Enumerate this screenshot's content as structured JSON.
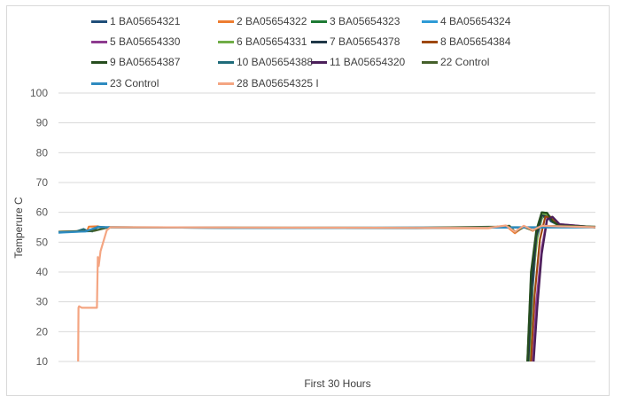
{
  "chart_data": {
    "type": "line",
    "title": "",
    "xlabel": "First 30 Hours",
    "ylabel": "Temperure C",
    "ylim": [
      10,
      100
    ],
    "yticks": [
      10,
      20,
      30,
      40,
      50,
      60,
      70,
      80,
      90,
      100
    ],
    "xlim": [
      0,
      30
    ],
    "grid": "horizontal",
    "legend_position": "top",
    "series": [
      {
        "name": "1 BA05654321",
        "color": "#1f4e79",
        "x": [
          26.3,
          26.5,
          26.7,
          27,
          27.3,
          27.5,
          28,
          30
        ],
        "y": [
          10,
          35,
          50,
          58,
          59.5,
          57,
          55.5,
          55
        ]
      },
      {
        "name": "2 BA05654322",
        "color": "#ed7d31",
        "x": [
          0,
          1.6,
          1.7,
          2.2,
          2.3,
          2.8,
          3,
          10,
          20,
          24,
          25,
          25.5,
          26,
          26.5,
          27,
          30
        ],
        "y": [
          53.5,
          53.8,
          55.2,
          55.3,
          55,
          55,
          55,
          54.8,
          54.7,
          54.7,
          55.5,
          53,
          55.2,
          53.8,
          55.5,
          55
        ]
      },
      {
        "name": "3 BA05654323",
        "color": "#1e7b34",
        "x": [
          26.2,
          26.4,
          26.7,
          27,
          27.3,
          27.6,
          28,
          30
        ],
        "y": [
          10,
          38,
          53,
          60,
          59.8,
          57,
          55.5,
          55
        ]
      },
      {
        "name": "4 BA05654324",
        "color": "#2e9bd6",
        "x": [
          0,
          1,
          1.8,
          2.2,
          2.8,
          10,
          20,
          24.5,
          30
        ],
        "y": [
          53.2,
          53.5,
          53.7,
          55,
          55,
          54.8,
          54.7,
          55,
          55
        ]
      },
      {
        "name": "5 BA05654330",
        "color": "#8e3b8f",
        "x": [
          26.5,
          26.7,
          27,
          27.3,
          27.6,
          28,
          30
        ],
        "y": [
          10,
          30,
          48,
          58,
          58.5,
          56,
          55
        ]
      },
      {
        "name": "6 BA05654331",
        "color": "#70ad47",
        "x": [
          26.3,
          26.5,
          26.8,
          27.1,
          27.4,
          27.7,
          28,
          30
        ],
        "y": [
          10,
          38,
          54,
          59.5,
          59,
          56.5,
          55.5,
          55
        ]
      },
      {
        "name": "7 BA05654378",
        "color": "#203848",
        "x": [
          26.25,
          26.45,
          26.7,
          27,
          27.3,
          28,
          30
        ],
        "y": [
          10,
          35,
          52,
          59,
          58.5,
          55.5,
          55
        ]
      },
      {
        "name": "8 BA05654384",
        "color": "#9e480e",
        "x": [
          26.4,
          26.6,
          26.9,
          27.2,
          27.5,
          28,
          30
        ],
        "y": [
          10,
          32,
          51,
          58.5,
          58.5,
          55.5,
          55
        ]
      },
      {
        "name": "9 BA05654387",
        "color": "#264d1e",
        "x": [
          26.2,
          26.4,
          26.7,
          27,
          27.3,
          27.6,
          28,
          30
        ],
        "y": [
          10,
          40,
          54,
          60,
          59.8,
          57,
          55.5,
          55
        ]
      },
      {
        "name": "10 BA05654388",
        "color": "#1f6b7a",
        "x": [
          0,
          1,
          1.4,
          1.6,
          1.9,
          2.2,
          2.6,
          10,
          30
        ],
        "y": [
          53.3,
          53.6,
          54.4,
          53.8,
          53.6,
          55.2,
          55,
          54.8,
          55
        ]
      },
      {
        "name": "11 BA05654320",
        "color": "#4b1f5a",
        "x": [
          26.55,
          26.75,
          27,
          27.3,
          27.6,
          28,
          30
        ],
        "y": [
          10,
          28,
          46,
          57.5,
          58.5,
          56,
          55
        ]
      },
      {
        "name": "22 Control",
        "color": "#44602a",
        "x": [
          0,
          2,
          2.8,
          10,
          20,
          24.5,
          25.2,
          25.5,
          26,
          26.5,
          27,
          28,
          30
        ],
        "y": [
          53.5,
          53.8,
          55,
          54.9,
          54.8,
          55.2,
          55.5,
          53.5,
          55,
          54,
          55.3,
          55.5,
          55.2
        ]
      },
      {
        "name": "23 Control",
        "color": "#2e8bc0",
        "x": [
          0,
          1.5,
          2.2,
          2.8,
          10,
          20,
          30
        ],
        "y": [
          53.3,
          53.6,
          55.1,
          55,
          54.8,
          54.8,
          55
        ]
      },
      {
        "name": "28 BA05654325 I",
        "color": "#f4a582",
        "x": [
          1.1,
          1.12,
          1.15,
          1.3,
          1.6,
          2.0,
          2.15,
          2.2,
          2.25,
          2.35,
          2.5,
          2.6,
          2.7,
          2.9,
          3.2,
          10,
          20,
          24,
          25,
          25.5,
          26,
          26.5,
          27,
          28,
          30
        ],
        "y": [
          10,
          28,
          28.5,
          28,
          28,
          28,
          28,
          45,
          42,
          47,
          50,
          52,
          54,
          55,
          55,
          54.9,
          54.8,
          54.8,
          55.6,
          53.5,
          55.5,
          54,
          55.5,
          55.3,
          55
        ]
      }
    ]
  }
}
